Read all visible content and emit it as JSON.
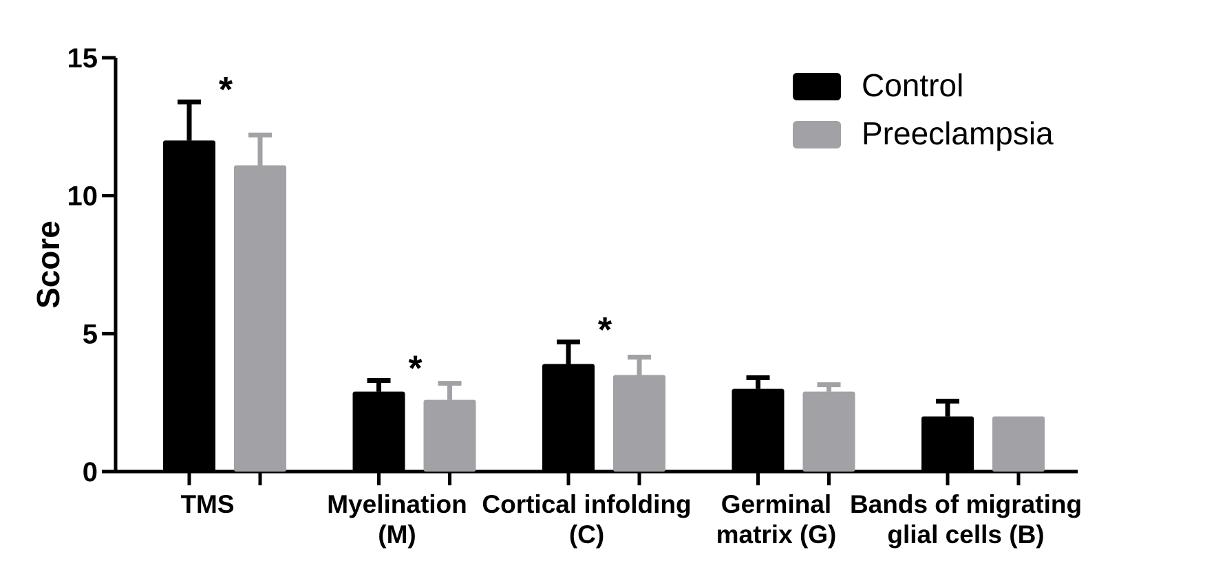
{
  "chart_data": {
    "type": "bar",
    "title": "",
    "xlabel": "",
    "ylabel": "Score",
    "ylim": [
      0,
      15
    ],
    "yticks": [
      "0",
      "5",
      "10",
      "15"
    ],
    "grid": false,
    "legend_position": "top-right",
    "categories": [
      [
        "TMS"
      ],
      [
        "Myelination",
        "(M)"
      ],
      [
        "Cortical infolding",
        "(C)"
      ],
      [
        "Germinal",
        "matrix  (G)"
      ],
      [
        "Bands of migrating",
        "glial cells (B)"
      ]
    ],
    "series": [
      {
        "name": "Control",
        "color": "#000000",
        "values": [
          12.0,
          2.9,
          3.9,
          3.0,
          2.0
        ],
        "errors": [
          1.4,
          0.4,
          0.8,
          0.4,
          0.55
        ]
      },
      {
        "name": "Preeclampsia",
        "color": "#a2a2a6",
        "values": [
          11.1,
          2.6,
          3.5,
          2.9,
          2.0
        ],
        "errors": [
          1.1,
          0.6,
          0.65,
          0.25,
          0.0
        ]
      }
    ],
    "annotations": [
      {
        "category_index": 0,
        "text": "*"
      },
      {
        "category_index": 1,
        "text": "*"
      },
      {
        "category_index": 2,
        "text": "*"
      }
    ]
  }
}
